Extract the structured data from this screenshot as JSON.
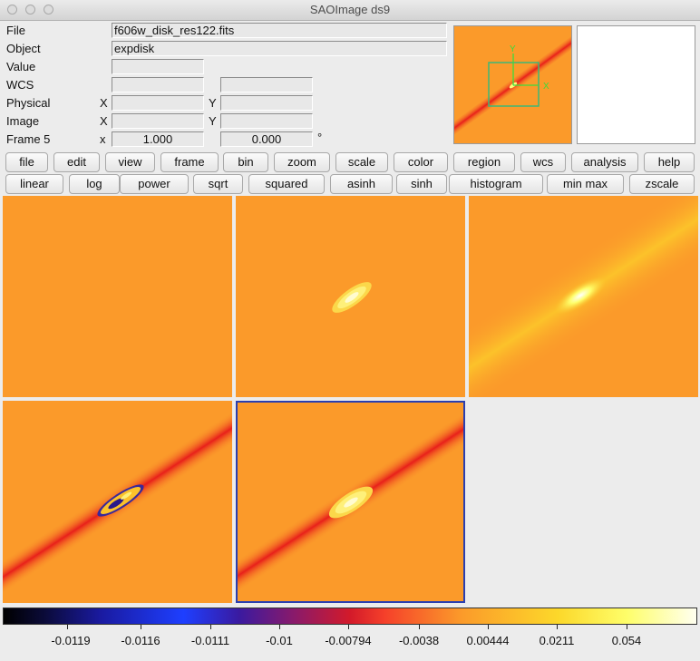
{
  "window": {
    "title": "SAOImage ds9"
  },
  "info": {
    "file_label": "File",
    "file_value": "f606w_disk_res122.fits",
    "object_label": "Object",
    "object_value": "expdisk",
    "value_label": "Value",
    "value_value": "",
    "wcs_label": "WCS",
    "wcs_value1": "",
    "wcs_value2": "",
    "physical_label": "Physical",
    "physical_x_label": "X",
    "physical_y_label": "Y",
    "physical_x_value": "",
    "physical_y_value": "",
    "image_label": "Image",
    "image_x_label": "X",
    "image_y_label": "Y",
    "image_x_value": "",
    "image_y_value": "",
    "frame_label": "Frame 5",
    "frame_x_label": "x",
    "zoom_value": "1.000",
    "angle_value": "0.000",
    "degree_symbol": "°"
  },
  "panner": {
    "axis_x_label": "X",
    "axis_y_label": "Y"
  },
  "menu_buttons": [
    "file",
    "edit",
    "view",
    "frame",
    "bin",
    "zoom",
    "scale",
    "color",
    "region",
    "wcs",
    "analysis",
    "help"
  ],
  "scale_buttons": [
    "linear",
    "log",
    "power",
    "sqrt",
    "squared",
    "asinh",
    "sinh",
    "histogram",
    "min max",
    "zscale"
  ],
  "colorbar": {
    "tick_labels": [
      "-0.0119",
      "-0.0116",
      "-0.0111",
      "-0.01",
      "-0.00794",
      "-0.0038",
      "0.00444",
      "0.0211",
      "0.054"
    ],
    "colors": {
      "min": "#000000",
      "mid": "#d31a2a",
      "max": "#fffff0"
    }
  },
  "colors": {
    "image_background": "#fb9a2a",
    "disk_band": "#e8201a",
    "core": "#fefe7a",
    "current_frame_border": "#2a3fb0",
    "panner_box": "#3cb878"
  }
}
